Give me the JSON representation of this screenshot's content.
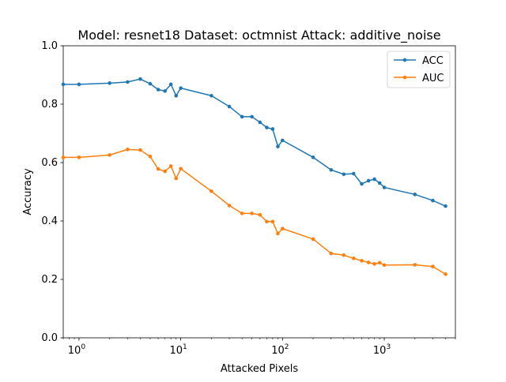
{
  "chart_data": {
    "type": "line",
    "title": "Model: resnet18 Dataset: octmnist Attack: additive_noise",
    "xlabel": "Attacked Pixels",
    "ylabel": "Accuracy",
    "xscale": "log",
    "xlim": [
      0.7,
      5000
    ],
    "ylim": [
      0.0,
      1.0
    ],
    "x_tick_labels": [
      {
        "value": 1,
        "base": "10",
        "exp": "0"
      },
      {
        "value": 10,
        "base": "10",
        "exp": "1"
      },
      {
        "value": 100,
        "base": "10",
        "exp": "2"
      },
      {
        "value": 1000,
        "base": "10",
        "exp": "3"
      }
    ],
    "y_ticks": [
      0.0,
      0.2,
      0.4,
      0.6,
      0.8,
      1.0
    ],
    "y_tick_labels": [
      "0.0",
      "0.2",
      "0.4",
      "0.6",
      "0.8",
      "1.0"
    ],
    "grid": false,
    "legend": {
      "position": "top-right"
    },
    "x": [
      0.7,
      1,
      2,
      3,
      4,
      5,
      6,
      7,
      8,
      9,
      10,
      20,
      30,
      40,
      50,
      60,
      70,
      80,
      90,
      100,
      200,
      300,
      400,
      500,
      600,
      700,
      800,
      900,
      1000,
      2000,
      3000,
      4000
    ],
    "series": [
      {
        "name": "ACC",
        "color": "#1f77b4",
        "values": [
          0.868,
          0.868,
          0.872,
          0.876,
          0.886,
          0.87,
          0.85,
          0.845,
          0.868,
          0.829,
          0.855,
          0.829,
          0.792,
          0.757,
          0.757,
          0.738,
          0.72,
          0.715,
          0.655,
          0.676,
          0.618,
          0.575,
          0.56,
          0.562,
          0.527,
          0.538,
          0.543,
          0.53,
          0.515,
          0.491,
          0.47,
          0.451
        ]
      },
      {
        "name": "AUC",
        "color": "#ff7f0e",
        "values": [
          0.618,
          0.618,
          0.626,
          0.645,
          0.643,
          0.621,
          0.578,
          0.57,
          0.588,
          0.546,
          0.579,
          0.502,
          0.453,
          0.426,
          0.426,
          0.421,
          0.398,
          0.398,
          0.357,
          0.374,
          0.338,
          0.289,
          0.283,
          0.272,
          0.264,
          0.258,
          0.253,
          0.257,
          0.249,
          0.25,
          0.244,
          0.218
        ]
      }
    ]
  }
}
